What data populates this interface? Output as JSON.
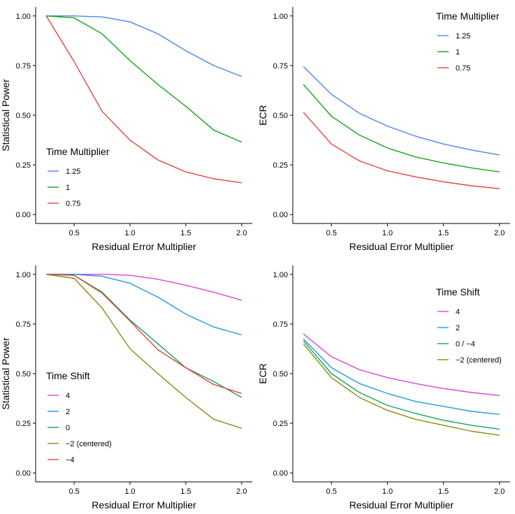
{
  "chart_data": [
    {
      "type": "line",
      "panel": "top-left",
      "title": "",
      "xlabel": "Residual Error Multiplier",
      "ylabel": "Statistical Power",
      "xlim": [
        0.25,
        2.0
      ],
      "ylim": [
        0,
        1
      ],
      "xticks": [
        0.5,
        1.0,
        1.5,
        2.0
      ],
      "xtick_labels": [
        "0.5",
        "1.0",
        "1.5",
        "2.0"
      ],
      "yticks": [
        0,
        0.25,
        0.5,
        0.75,
        1.0
      ],
      "ytick_labels": [
        "0.00",
        "0.25",
        "0.50",
        "0.75",
        "1.00"
      ],
      "grid": false,
      "legend_title": "Time Multiplier",
      "legend_position": "bottom-left",
      "x": [
        0.25,
        0.5,
        0.75,
        1.0,
        1.25,
        1.5,
        1.75,
        2.0
      ],
      "series": [
        {
          "name": "1.25",
          "color": "#4a86e8",
          "values": [
            1.0,
            1.0,
            0.995,
            0.97,
            0.91,
            0.825,
            0.75,
            0.695
          ]
        },
        {
          "name": "1",
          "color": "#1aa31a",
          "values": [
            1.0,
            0.99,
            0.91,
            0.775,
            0.655,
            0.545,
            0.425,
            0.365
          ]
        },
        {
          "name": "0.75",
          "color": "#e8423e",
          "values": [
            1.0,
            0.77,
            0.52,
            0.375,
            0.275,
            0.215,
            0.18,
            0.16
          ]
        }
      ]
    },
    {
      "type": "line",
      "panel": "top-right",
      "title": "",
      "xlabel": "Residual Error Multiplier",
      "ylabel": "ECR",
      "xlim": [
        0.25,
        2.0
      ],
      "ylim": [
        0,
        1
      ],
      "xticks": [
        0.5,
        1.0,
        1.5,
        2.0
      ],
      "xtick_labels": [
        "0.5",
        "1.0",
        "1.5",
        "2.0"
      ],
      "yticks": [
        0,
        0.25,
        0.5,
        0.75,
        1.0
      ],
      "ytick_labels": [
        "0.00",
        "0.25",
        "0.50",
        "0.75",
        "1.00"
      ],
      "grid": false,
      "legend_title": "Time Multiplier",
      "legend_position": "top-right",
      "x": [
        0.25,
        0.5,
        0.75,
        1.0,
        1.25,
        1.5,
        1.75,
        2.0
      ],
      "series": [
        {
          "name": "1.25",
          "color": "#4a86e8",
          "values": [
            0.745,
            0.605,
            0.51,
            0.445,
            0.395,
            0.355,
            0.325,
            0.3
          ]
        },
        {
          "name": "1",
          "color": "#1aa31a",
          "values": [
            0.655,
            0.495,
            0.4,
            0.335,
            0.29,
            0.26,
            0.235,
            0.215
          ]
        },
        {
          "name": "0.75",
          "color": "#e8423e",
          "values": [
            0.515,
            0.355,
            0.27,
            0.22,
            0.19,
            0.165,
            0.145,
            0.13
          ]
        }
      ]
    },
    {
      "type": "line",
      "panel": "bottom-left",
      "title": "",
      "xlabel": "Residual Error Multiplier",
      "ylabel": "Statistical Power",
      "xlim": [
        0.25,
        2.0
      ],
      "ylim": [
        0,
        1
      ],
      "xticks": [
        0.5,
        1.0,
        1.5,
        2.0
      ],
      "xtick_labels": [
        "0.5",
        "1.0",
        "1.5",
        "2.0"
      ],
      "yticks": [
        0,
        0.25,
        0.5,
        0.75,
        1.0
      ],
      "ytick_labels": [
        "0.00",
        "0.25",
        "0.50",
        "0.75",
        "1.00"
      ],
      "grid": false,
      "legend_title": "Time Shift",
      "legend_position": "bottom-left",
      "x": [
        0.25,
        0.5,
        0.75,
        1.0,
        1.25,
        1.5,
        1.75,
        2.0
      ],
      "series": [
        {
          "name": "4",
          "color": "#d946d9",
          "values": [
            1.0,
            1.0,
            1.0,
            0.995,
            0.975,
            0.945,
            0.91,
            0.87
          ]
        },
        {
          "name": "2",
          "color": "#1e9be0",
          "values": [
            1.0,
            1.0,
            0.99,
            0.955,
            0.885,
            0.8,
            0.735,
            0.695
          ]
        },
        {
          "name": "0",
          "color": "#1aa35a",
          "values": [
            1.0,
            0.995,
            0.91,
            0.77,
            0.65,
            0.53,
            0.46,
            0.38
          ]
        },
        {
          "name": "−2 (centered)",
          "color": "#8a8a10",
          "values": [
            1.0,
            0.98,
            0.83,
            0.625,
            0.5,
            0.38,
            0.27,
            0.225
          ]
        },
        {
          "name": "−4",
          "color": "#e8423e",
          "values": [
            1.0,
            0.995,
            0.905,
            0.765,
            0.62,
            0.53,
            0.445,
            0.4
          ]
        }
      ]
    },
    {
      "type": "line",
      "panel": "bottom-right",
      "title": "",
      "xlabel": "Residual Error Multiplier",
      "ylabel": "ECR",
      "xlim": [
        0.25,
        2.0
      ],
      "ylim": [
        0,
        1
      ],
      "xticks": [
        0.5,
        1.0,
        1.5,
        2.0
      ],
      "xtick_labels": [
        "0.5",
        "1.0",
        "1.5",
        "2.0"
      ],
      "yticks": [
        0,
        0.25,
        0.5,
        0.75,
        1.0
      ],
      "ytick_labels": [
        "0.00",
        "0.25",
        "0.50",
        "0.75",
        "1.00"
      ],
      "grid": false,
      "legend_title": "Time Shift",
      "legend_position": "top-right",
      "x": [
        0.25,
        0.5,
        0.75,
        1.0,
        1.25,
        1.5,
        1.75,
        2.0
      ],
      "series": [
        {
          "name": "4",
          "color": "#d946d9",
          "values": [
            0.7,
            0.585,
            0.52,
            0.48,
            0.45,
            0.425,
            0.405,
            0.39
          ]
        },
        {
          "name": "2",
          "color": "#1e9be0",
          "values": [
            0.675,
            0.53,
            0.45,
            0.4,
            0.36,
            0.335,
            0.31,
            0.295
          ]
        },
        {
          "name": "0 / −4",
          "color": "#1aa35a",
          "values": [
            0.665,
            0.5,
            0.405,
            0.34,
            0.3,
            0.265,
            0.24,
            0.22
          ]
        },
        {
          "name": "−2 (centered)",
          "color": "#8a8a10",
          "values": [
            0.65,
            0.48,
            0.38,
            0.315,
            0.27,
            0.24,
            0.21,
            0.19
          ]
        }
      ]
    }
  ]
}
